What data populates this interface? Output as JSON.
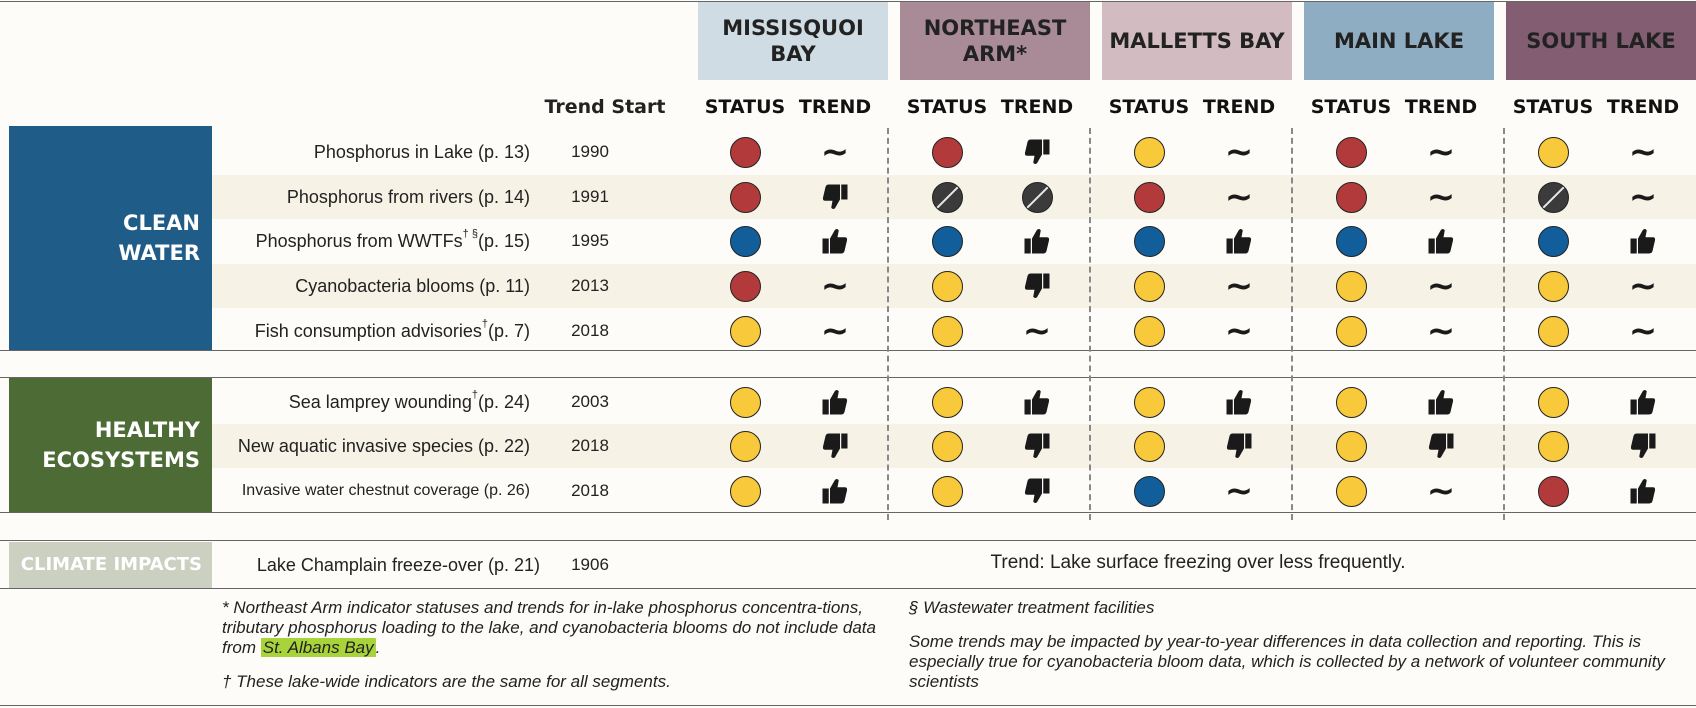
{
  "segments": [
    {
      "name": "MISSISQUOI BAY",
      "color": "#cfdce3"
    },
    {
      "name": "NORTHEAST ARM*",
      "color": "#a88b96"
    },
    {
      "name": "MALLETTS BAY",
      "color": "#d2bcc1"
    },
    {
      "name": "MAIN LAKE",
      "color": "#8eadc2"
    },
    {
      "name": "SOUTH LAKE",
      "color": "#835e73"
    }
  ],
  "column_headers": {
    "trend_start": "Trend Start",
    "status": "STATUS",
    "trend": "TREND"
  },
  "categories": [
    {
      "name": "CLEAN WATER",
      "color": "#1f5c87"
    },
    {
      "name": "HEALTHY ECOSYSTEMS",
      "color": "#4c6b35"
    },
    {
      "name": "CLIMATE IMPACTS",
      "color": "#ccd0c0"
    }
  ],
  "indicators": [
    {
      "label": "Phosphorus in Lake (p. 13)",
      "start": "1990",
      "cells": [
        [
          "red",
          "flat"
        ],
        [
          "red",
          "down"
        ],
        [
          "yellow",
          "flat"
        ],
        [
          "red",
          "flat"
        ],
        [
          "yellow",
          "flat"
        ]
      ]
    },
    {
      "label": "Phosphorus from rivers (p. 14)",
      "start": "1991",
      "cells": [
        [
          "red",
          "down"
        ],
        [
          "na",
          "na"
        ],
        [
          "red",
          "flat"
        ],
        [
          "red",
          "flat"
        ],
        [
          "na",
          "flat"
        ]
      ]
    },
    {
      "label": "Phosphorus from WWTFs",
      "label_sup": "† §",
      "label_end": "(p. 15)",
      "start": "1995",
      "cells": [
        [
          "blue",
          "up"
        ],
        [
          "blue",
          "up"
        ],
        [
          "blue",
          "up"
        ],
        [
          "blue",
          "up"
        ],
        [
          "blue",
          "up"
        ]
      ]
    },
    {
      "label": "Cyanobacteria blooms (p. 11)",
      "start": "2013",
      "cells": [
        [
          "red",
          "flat"
        ],
        [
          "yellow",
          "down"
        ],
        [
          "yellow",
          "flat"
        ],
        [
          "yellow",
          "flat"
        ],
        [
          "yellow",
          "flat"
        ]
      ]
    },
    {
      "label": "Fish consumption advisories",
      "label_sup": "†",
      "label_end": " (p. 7)",
      "start": "2018",
      "cells": [
        [
          "yellow",
          "flat"
        ],
        [
          "yellow",
          "flat"
        ],
        [
          "yellow",
          "flat"
        ],
        [
          "yellow",
          "flat"
        ],
        [
          "yellow",
          "flat"
        ]
      ]
    },
    {
      "label": "Sea lamprey wounding",
      "label_sup": "†",
      "label_end": " (p. 24)",
      "start": "2003",
      "cells": [
        [
          "yellow",
          "up"
        ],
        [
          "yellow",
          "up"
        ],
        [
          "yellow",
          "up"
        ],
        [
          "yellow",
          "up"
        ],
        [
          "yellow",
          "up"
        ]
      ]
    },
    {
      "label": "New aquatic invasive species (p. 22)",
      "start": "2018",
      "cells": [
        [
          "yellow",
          "down"
        ],
        [
          "yellow",
          "down"
        ],
        [
          "yellow",
          "down"
        ],
        [
          "yellow",
          "down"
        ],
        [
          "yellow",
          "down"
        ]
      ]
    },
    {
      "label": "Invasive water chestnut coverage (p. 26)",
      "start": "2018",
      "cells": [
        [
          "yellow",
          "up"
        ],
        [
          "yellow",
          "down"
        ],
        [
          "blue",
          "flat"
        ],
        [
          "yellow",
          "flat"
        ],
        [
          "red",
          "up"
        ]
      ]
    }
  ],
  "climate": {
    "label": "Lake Champlain freeze-over (p. 21)",
    "start": "1906",
    "trend_text": "Trend: Lake surface freezing over less frequently."
  },
  "colors": {
    "red": "#b33a3a",
    "yellow": "#f8c93a",
    "blue": "#125e9a",
    "not_assessed": "#3b3b3b",
    "row_shade": "#f6f2e6",
    "highlight": "#a8d33a"
  },
  "footnotes": {
    "asterisk_text": "* Northeast Arm indicator statuses and trends for in-lake phosphorus concentra-tions, tributary phosphorus loading to the lake, and cyanobacteria blooms do not include data from",
    "asterisk_highlight": "St. Albans Bay",
    "asterisk_end": ".",
    "dagger": "† These lake-wide indicators are the same for all segments.",
    "section": "§ Wastewater treatment facilities",
    "disclaimer": "Some trends may be impacted by year-to-year differences in data collection and reporting. This is especially true for cyanobacteria bloom data, which is collected by a network of volunteer community scientists"
  }
}
